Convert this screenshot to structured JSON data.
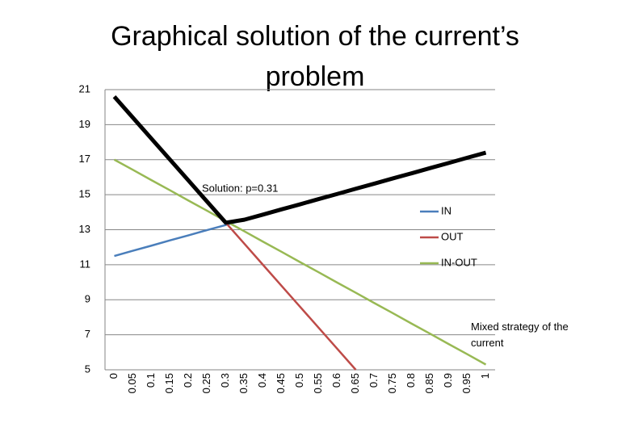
{
  "chart_data": {
    "type": "line",
    "title": "Graphical solution of the current’s problem",
    "categories": [
      "0",
      "0.05",
      "0.1",
      "0.15",
      "0.2",
      "0.25",
      "0.3",
      "0.35",
      "0.4",
      "0.45",
      "0.5",
      "0.55",
      "0.6",
      "0.65",
      "0.7",
      "0.75",
      "0.8",
      "0.85",
      "0.9",
      "0.95",
      "1"
    ],
    "series": [
      {
        "name": "IN",
        "color": "#4a7ebb",
        "values": [
          11.5,
          11.8,
          12.09,
          12.39,
          12.68,
          12.98,
          13.27,
          13.57,
          13.86,
          14.16,
          14.45,
          14.75,
          15.04,
          15.34,
          15.63,
          15.93,
          16.22,
          16.52,
          16.81,
          17.11,
          17.4
        ]
      },
      {
        "name": "OUT",
        "color": "#be4b48",
        "values": [
          20.6,
          19.4,
          18.2,
          17.0,
          15.8,
          14.6,
          13.4,
          12.2,
          11.0,
          9.8,
          8.6,
          7.4,
          6.2,
          5.0,
          null,
          null,
          null,
          null,
          null,
          null,
          null
        ]
      },
      {
        "name": "IN-OUT",
        "color": "#98b954",
        "values": [
          17,
          16.42,
          15.83,
          15.25,
          14.66,
          14.08,
          13.49,
          12.91,
          12.32,
          11.74,
          11.15,
          10.57,
          9.98,
          9.4,
          8.81,
          8.23,
          7.64,
          7.06,
          6.47,
          5.89,
          5.3
        ]
      },
      {
        "name": "Mixed strategy of the current",
        "color": "#000000",
        "values": [
          20.6,
          19.4,
          18.2,
          17.0,
          15.8,
          14.6,
          13.4,
          13.57,
          13.86,
          14.16,
          14.45,
          14.75,
          15.04,
          15.34,
          15.63,
          15.93,
          16.22,
          16.52,
          16.81,
          17.11,
          17.4
        ]
      }
    ],
    "annotations": [
      "Solution: p=0.31"
    ],
    "ylim": [
      5,
      21
    ],
    "yticks": [
      5,
      7,
      9,
      11,
      13,
      15,
      17,
      19,
      21
    ],
    "grid": true,
    "legend": "right"
  }
}
